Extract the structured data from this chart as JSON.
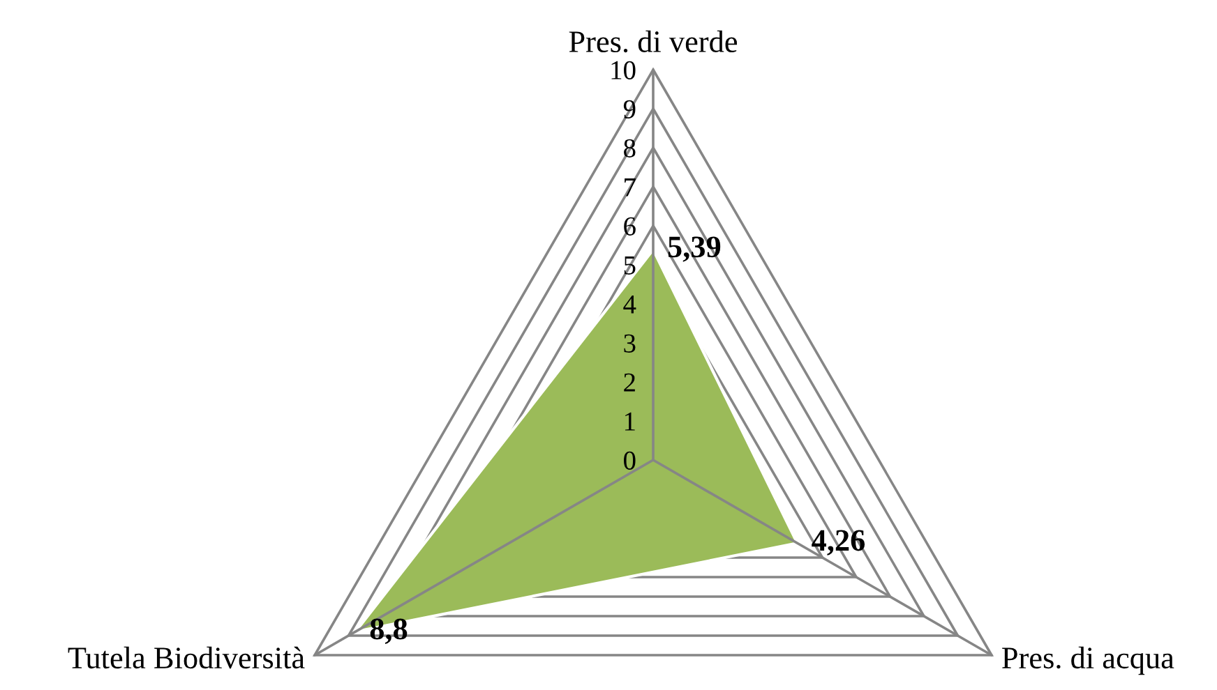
{
  "chart_data": {
    "type": "radar",
    "categories": [
      "Pres. di verde",
      "Pres. di acqua",
      "Tutela Biodiversità"
    ],
    "series": [
      {
        "color": "#9bbb59",
        "values": [
          5.39,
          4.26,
          8.8
        ],
        "value_labels": [
          "5,39",
          "4,26",
          "8,8"
        ]
      }
    ],
    "ylim": [
      0,
      10
    ],
    "yticks": [
      0,
      1,
      2,
      3,
      4,
      5,
      6,
      7,
      8,
      9,
      10
    ],
    "grid": true
  }
}
